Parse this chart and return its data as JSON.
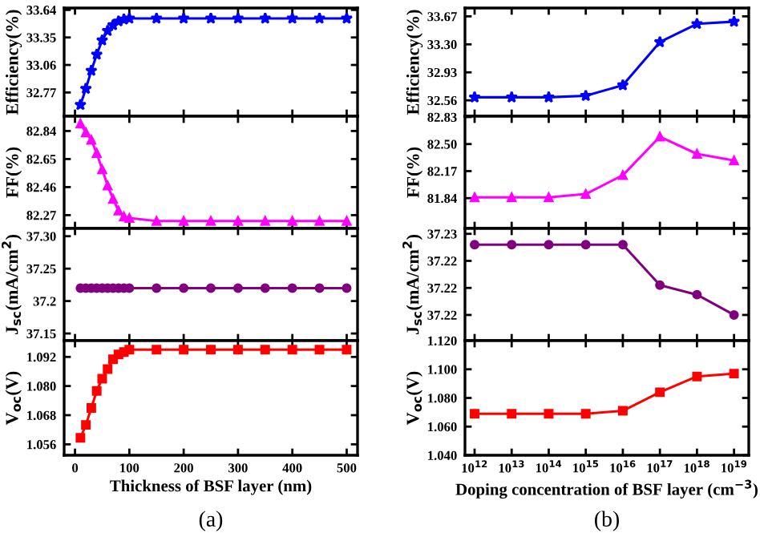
{
  "chart_data": [
    {
      "type": "line",
      "ylabel": "Efficiency(%)",
      "x": [
        10,
        20,
        30,
        40,
        50,
        60,
        70,
        80,
        90,
        100,
        150,
        200,
        250,
        300,
        350,
        400,
        450,
        500
      ],
      "xlim": [
        -20,
        520
      ],
      "xticks": [
        0,
        100,
        200,
        300,
        400,
        500
      ],
      "ylim": [
        32.52,
        33.66
      ],
      "yticks": [
        32.77,
        33.06,
        33.35,
        33.64
      ],
      "tick_labels": "y",
      "marker": "star",
      "series": [
        {
          "color": "#0000ff",
          "values": [
            32.64,
            32.81,
            33.0,
            33.17,
            33.32,
            33.42,
            33.48,
            33.52,
            33.54,
            33.55,
            33.55,
            33.55,
            33.55,
            33.55,
            33.55,
            33.55,
            33.55,
            33.55
          ]
        }
      ]
    },
    {
      "type": "line",
      "ylabel": "FF(%)",
      "x": [
        10,
        20,
        30,
        40,
        50,
        60,
        70,
        80,
        90,
        100,
        150,
        200,
        250,
        300,
        350,
        400,
        450,
        500
      ],
      "xlim": [
        -20,
        520
      ],
      "xticks": [
        0,
        100,
        200,
        300,
        400,
        500
      ],
      "ylim": [
        82.18,
        82.94
      ],
      "yticks": [
        82.27,
        82.46,
        82.65,
        82.84
      ],
      "tick_labels": "y",
      "marker": "triangle",
      "series": [
        {
          "color": "#ff00ff",
          "values": [
            82.89,
            82.83,
            82.78,
            82.69,
            82.58,
            82.47,
            82.38,
            82.3,
            82.26,
            82.25,
            82.23,
            82.23,
            82.23,
            82.23,
            82.23,
            82.23,
            82.23,
            82.23
          ]
        }
      ]
    },
    {
      "type": "line",
      "ylabel": "J$_{sc}$(mA/cm$^{2}$)",
      "x": [
        10,
        20,
        30,
        40,
        50,
        60,
        70,
        80,
        90,
        100,
        150,
        200,
        250,
        300,
        350,
        400,
        450,
        500
      ],
      "xlim": [
        -20,
        520
      ],
      "xticks": [
        0,
        100,
        200,
        300,
        400,
        500
      ],
      "ylim": [
        37.139,
        37.312
      ],
      "yticks": [
        37.15,
        37.2,
        37.25,
        {
          "value": 37.3,
          "label": "37.30"
        }
      ],
      "tick_labels": "y",
      "marker": "circle",
      "series": [
        {
          "color": "#800080",
          "values": [
            37.22,
            37.22,
            37.22,
            37.22,
            37.22,
            37.22,
            37.22,
            37.22,
            37.22,
            37.22,
            37.22,
            37.22,
            37.22,
            37.22,
            37.22,
            37.22,
            37.22,
            37.22
          ]
        }
      ]
    },
    {
      "type": "line",
      "ylabel": "V$_{oc}$(V)",
      "xlabel": "Thickness of BSF layer (nm)",
      "annotations": [
        "(a)"
      ],
      "x": [
        10,
        20,
        30,
        40,
        50,
        60,
        70,
        80,
        90,
        100,
        150,
        200,
        250,
        300,
        350,
        400,
        450,
        500
      ],
      "xlim": [
        -20,
        520
      ],
      "xticks": [
        0,
        100,
        200,
        300,
        400,
        500
      ],
      "ylim": [
        1.0515,
        1.0987
      ],
      "yticks": [
        1.056,
        1.068,
        {
          "value": 1.08,
          "label": "1.080"
        },
        1.092
      ],
      "marker": "square",
      "series": [
        {
          "color": "#ff0000",
          "values": [
            1.0587,
            1.064,
            1.071,
            1.078,
            1.083,
            1.087,
            1.091,
            1.093,
            1.094,
            1.095,
            1.095,
            1.095,
            1.095,
            1.095,
            1.095,
            1.095,
            1.095,
            1.095
          ]
        }
      ]
    },
    {
      "type": "line",
      "ylabel": "Efficiency(%)",
      "log": "x",
      "x": [
        1000000000000.0,
        10000000000000.0,
        100000000000000.0,
        1000000000000000.0,
        1e+16,
        1e+17,
        1e+18,
        1e+19
      ],
      "xlim": [
        550000000000.0,
        2.5e+19
      ],
      "ylim": [
        32.35,
        33.78
      ],
      "yticks": [
        32.56,
        32.93,
        {
          "value": 33.3,
          "label": "33.30"
        },
        33.67
      ],
      "tick_labels": "y",
      "marker": "star",
      "xticks": [
        {
          "value": 1000000000000.0,
          "label": null
        },
        {
          "value": 10000000000000.0,
          "label": null
        },
        {
          "value": 100000000000000.0,
          "label": null
        },
        {
          "value": 1000000000000000.0,
          "label": null
        },
        {
          "value": 1e+16,
          "label": null
        },
        {
          "value": 1e+17,
          "label": null
        },
        {
          "value": 1e+18,
          "label": null
        },
        {
          "value": 1e+19,
          "label": null
        }
      ],
      "series": [
        {
          "color": "#0000ff",
          "values": [
            32.6,
            32.6,
            32.6,
            32.62,
            32.76,
            33.33,
            33.57,
            33.6
          ]
        }
      ]
    },
    {
      "type": "line",
      "ylabel": "FF(%)",
      "log": "x",
      "x": [
        1000000000000.0,
        10000000000000.0,
        100000000000000.0,
        1000000000000000.0,
        1e+16,
        1e+17,
        1e+18,
        1e+19
      ],
      "xlim": [
        550000000000.0,
        2.5e+19
      ],
      "ylim": [
        81.47,
        82.84
      ],
      "yticks": [
        81.84,
        82.17,
        {
          "value": 82.5,
          "label": "82.50"
        },
        82.83
      ],
      "tick_labels": "y",
      "marker": "triangle",
      "xticks": [
        {
          "value": 1000000000000.0,
          "label": null
        },
        {
          "value": 10000000000000.0,
          "label": null
        },
        {
          "value": 100000000000000.0,
          "label": null
        },
        {
          "value": 1000000000000000.0,
          "label": null
        },
        {
          "value": 1e+16,
          "label": null
        },
        {
          "value": 1e+17,
          "label": null
        },
        {
          "value": 1e+18,
          "label": null
        },
        {
          "value": 1e+19,
          "label": null
        }
      ],
      "series": [
        {
          "color": "#ff00ff",
          "values": [
            81.85,
            81.85,
            81.85,
            81.89,
            82.12,
            82.59,
            82.38,
            82.3
          ]
        }
      ]
    },
    {
      "type": "line",
      "ylabel": "J$_{sc}$(mA/cm$^{2}$)",
      "log": "x",
      "x": [
        1000000000000.0,
        10000000000000.0,
        100000000000000.0,
        1000000000000000.0,
        1e+16,
        1e+17,
        1e+18,
        1e+19
      ],
      "xlim": [
        550000000000.0,
        2.5e+19
      ],
      "ylim": [
        37.2181,
        37.2264
      ],
      "yticks": [
        {
          "value": 37.22,
          "label": "37.22"
        },
        {
          "value": 37.222,
          "label": "37.22"
        },
        {
          "value": 37.224,
          "label": "37.22"
        },
        {
          "value": 37.226,
          "label": "37.23"
        }
      ],
      "tick_labels": "y",
      "marker": "circle",
      "xticks": [
        {
          "value": 1000000000000.0,
          "label": null
        },
        {
          "value": 10000000000000.0,
          "label": null
        },
        {
          "value": 100000000000000.0,
          "label": null
        },
        {
          "value": 1000000000000000.0,
          "label": null
        },
        {
          "value": 1e+16,
          "label": null
        },
        {
          "value": 1e+17,
          "label": null
        },
        {
          "value": 1e+18,
          "label": null
        },
        {
          "value": 1e+19,
          "label": null
        }
      ],
      "series": [
        {
          "color": "#800080",
          "values": [
            37.2252,
            37.2252,
            37.2252,
            37.2252,
            37.2252,
            37.2222,
            37.2215,
            37.22
          ]
        }
      ]
    },
    {
      "type": "line",
      "ylabel": "V$_{oc}$(V)",
      "xlabel": "Doping concentration of BSF layer (cm$^{−3}$)",
      "annotations": [
        "(b)"
      ],
      "log": "x",
      "x": [
        1000000000000.0,
        10000000000000.0,
        100000000000000.0,
        1000000000000000.0,
        1e+16,
        1e+17,
        1e+18,
        1e+19
      ],
      "xlim": [
        550000000000.0,
        2.5e+19
      ],
      "ylim": [
        1.04,
        1.12
      ],
      "yticks": [
        {
          "value": 1.04,
          "label": "1.040"
        },
        {
          "value": 1.06,
          "label": "1.060"
        },
        {
          "value": 1.08,
          "label": "1.080"
        },
        {
          "value": 1.1,
          "label": "1.100"
        },
        {
          "value": 1.12,
          "label": "1.120"
        }
      ],
      "marker": "square",
      "xticks": [
        {
          "value": 1000000000000.0,
          "label": "10$^{12}$"
        },
        {
          "value": 10000000000000.0,
          "label": "10$^{13}$"
        },
        {
          "value": 100000000000000.0,
          "label": "10$^{14}$"
        },
        {
          "value": 1000000000000000.0,
          "label": "10$^{15}$"
        },
        {
          "value": 1e+16,
          "label": "10$^{16}$"
        },
        {
          "value": 1e+17,
          "label": "10$^{17}$"
        },
        {
          "value": 1e+18,
          "label": "10$^{18}$"
        },
        {
          "value": 1e+19,
          "label": "10$^{19}$"
        }
      ],
      "series": [
        {
          "color": "#ff0000",
          "values": [
            1.069,
            1.069,
            1.069,
            1.069,
            1.071,
            1.084,
            1.095,
            1.097
          ]
        }
      ]
    }
  ]
}
